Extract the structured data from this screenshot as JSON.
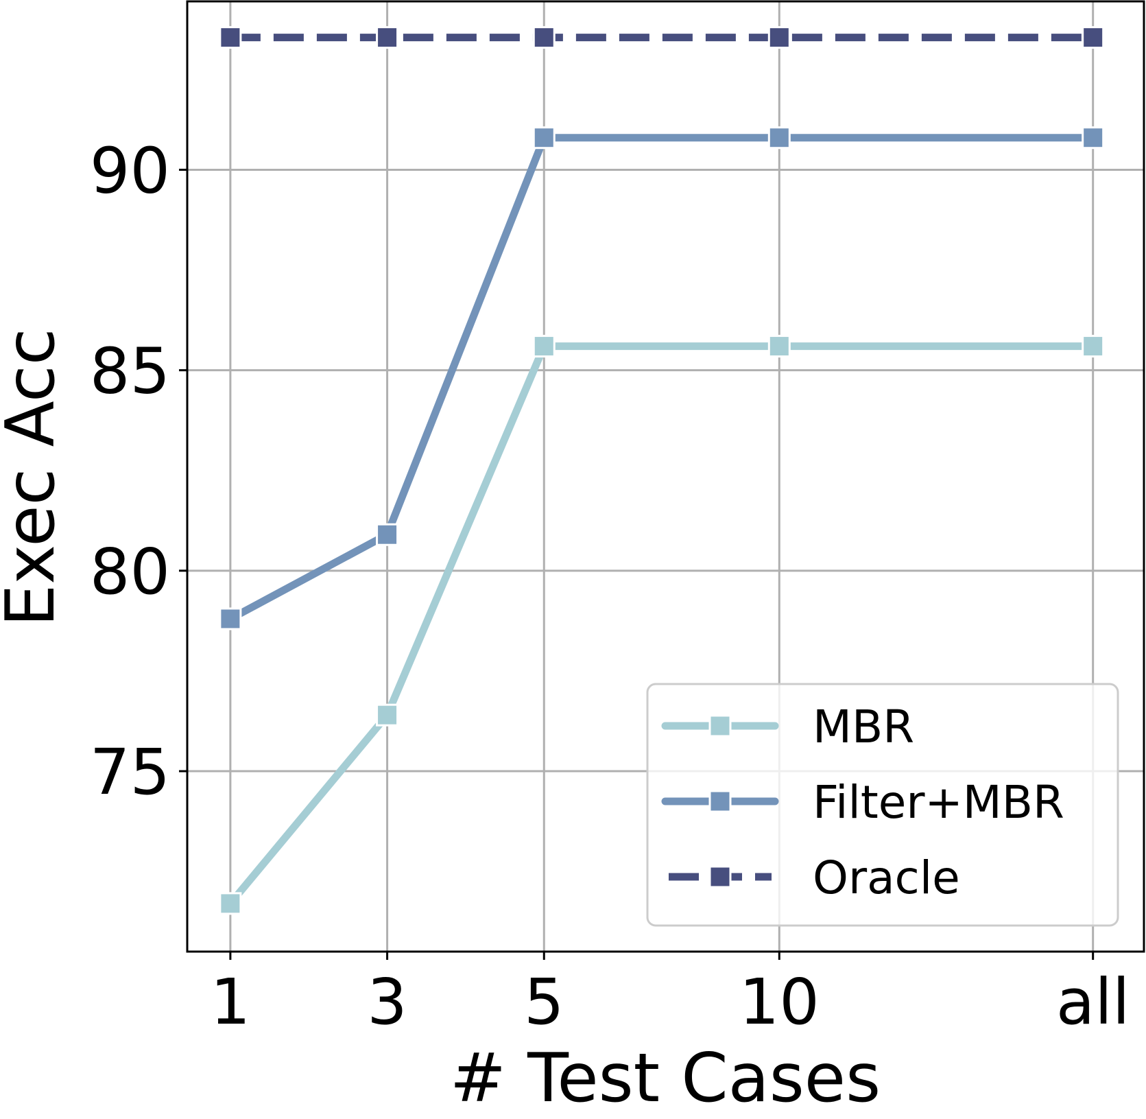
{
  "chart_data": {
    "type": "line",
    "categories": [
      "1",
      "3",
      "5",
      "10",
      "all"
    ],
    "x_positions": [
      1,
      3,
      5,
      8,
      12
    ],
    "xlabel": "# Test Cases",
    "ylabel": "Exec Acc",
    "ylim": [
      70.5,
      94.2
    ],
    "yticks": [
      75,
      80,
      85,
      90
    ],
    "grid": true,
    "legend_position": "lower-right",
    "series": [
      {
        "name": "MBR",
        "values": [
          71.7,
          76.4,
          85.6,
          85.6,
          85.6
        ],
        "color": "#a5cdd4",
        "dash": "solid"
      },
      {
        "name": "Filter+MBR",
        "values": [
          78.8,
          80.9,
          90.8,
          90.8,
          90.8
        ],
        "color": "#7393b9",
        "dash": "solid"
      },
      {
        "name": "Oracle",
        "values": [
          93.3,
          93.3,
          93.3,
          93.3,
          93.3
        ],
        "color": "#474e7e",
        "dash": "dashed"
      }
    ]
  }
}
